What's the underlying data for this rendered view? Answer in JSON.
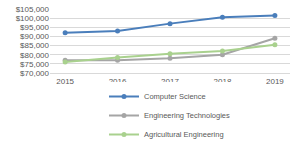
{
  "chart_data": {
    "type": "line",
    "categories": [
      "2015",
      "2016",
      "2017",
      "2018",
      "2019"
    ],
    "series": [
      {
        "name": "Computer Science",
        "color": "#4a7ebb",
        "values": [
          92000,
          93000,
          97000,
          100500,
          101500
        ]
      },
      {
        "name": "Engineering Technologies",
        "color": "#a5a5a5",
        "values": [
          77000,
          77000,
          78000,
          80000,
          89000
        ]
      },
      {
        "name": "Agricultural Engineering",
        "color": "#a9d18e",
        "values": [
          76000,
          78500,
          80500,
          82000,
          85500
        ]
      }
    ],
    "ylim": [
      70000,
      105000
    ],
    "yticks": [
      {
        "value": 70000,
        "label": "$70,000"
      },
      {
        "value": 75000,
        "label": "$75,000"
      },
      {
        "value": 80000,
        "label": "$80,000"
      },
      {
        "value": 85000,
        "label": "$85,000"
      },
      {
        "value": 90000,
        "label": "$90,000"
      },
      {
        "value": 95000,
        "label": "$95,000"
      },
      {
        "value": 100000,
        "label": "$100,000"
      },
      {
        "value": 105000,
        "label": "$105,000"
      }
    ],
    "grid": true,
    "legend": "bottom",
    "marker": "circle"
  }
}
